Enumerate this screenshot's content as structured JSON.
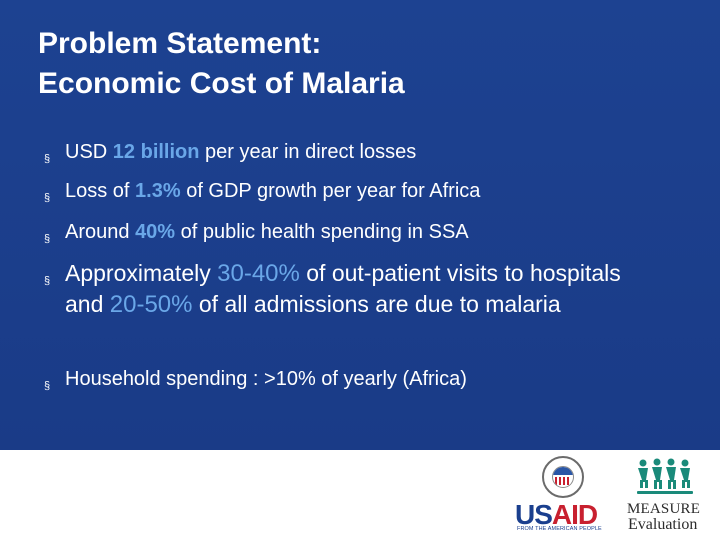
{
  "slide": {
    "title_lines": [
      "Problem Statement:",
      "Economic Cost of Malaria"
    ],
    "bullet_marker": "§",
    "bullets": [
      {
        "pre": "USD ",
        "highlight": "12 billion",
        "post": " per year in direct losses"
      },
      {
        "pre": "Loss of ",
        "highlight": "1.3%",
        "post": " of GDP growth per year for Africa"
      },
      {
        "pre": "Around ",
        "highlight": "40%",
        "post": " of public health spending in SSA"
      },
      {
        "p1": "Approximately ",
        "h1": "30-40%",
        "p2": " of out-patient visits to hospitals and ",
        "h2": "20-50%",
        "p3": " of all admissions are due to malaria"
      },
      {
        "text": "Household spending : >10% of yearly (Africa)"
      }
    ]
  },
  "logos": {
    "usaid": {
      "word_us": "US",
      "word_aid": "AID",
      "tagline": "FROM THE AMERICAN PEOPLE"
    },
    "measure": {
      "word": "MEASURE",
      "sub": "Evaluation"
    }
  },
  "colors": {
    "background": "#1b3e8c",
    "highlight": "#6aa7e8",
    "title": "#ffffff"
  }
}
